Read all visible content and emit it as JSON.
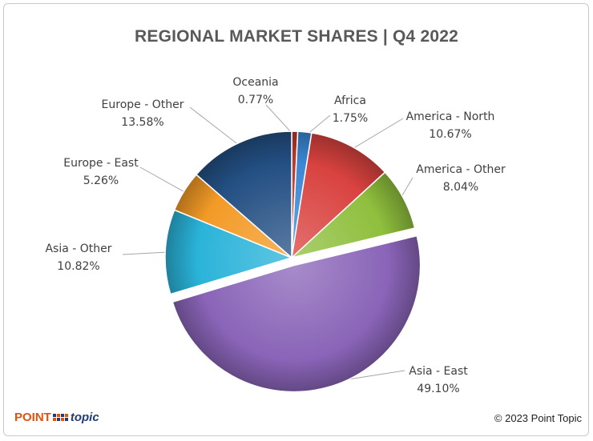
{
  "chart_data": {
    "type": "pie",
    "title": "REGIONAL MARKET SHARES | Q4 2022",
    "slices": [
      {
        "label": "Oceania",
        "value_label": "0.77%",
        "value": 0.77,
        "color": "#c0392b"
      },
      {
        "label": "Africa",
        "value_label": "1.75%",
        "value": 1.75,
        "color": "#3b87d4"
      },
      {
        "label": "America - North",
        "value_label": "10.67%",
        "value": 10.67,
        "color": "#d9423f"
      },
      {
        "label": "America - Other",
        "value_label": "8.04%",
        "value": 8.04,
        "color": "#8fbf3d"
      },
      {
        "label": "Asia - East",
        "value_label": "49.10%",
        "value": 49.1,
        "color": "#8a64b8",
        "exploded": true
      },
      {
        "label": "Asia - Other",
        "value_label": "10.82%",
        "value": 10.82,
        "color": "#2ab3d9"
      },
      {
        "label": "Europe - East",
        "value_label": "5.26%",
        "value": 5.26,
        "color": "#f39a26"
      },
      {
        "label": "Europe - Other",
        "value_label": "13.58%",
        "value": 13.58,
        "color": "#234f83"
      }
    ]
  },
  "footer": {
    "logo_point": "POINT",
    "logo_topic": "topic",
    "copyright": "© 2023 Point Topic"
  }
}
